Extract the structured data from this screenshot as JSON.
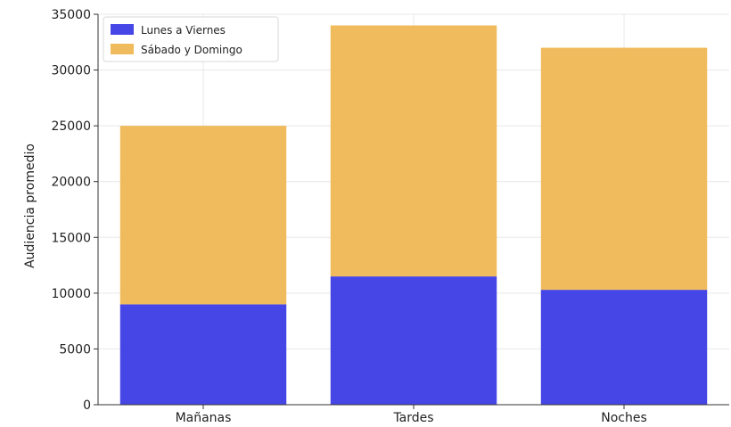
{
  "chart_data": {
    "type": "bar",
    "stacked": true,
    "categories": [
      "Mañanas",
      "Tardes",
      "Noches"
    ],
    "series": [
      {
        "name": "Lunes a Viernes",
        "values": [
          9000,
          11500,
          10300
        ],
        "color": "#4646e6"
      },
      {
        "name": "Sábado y Domingo",
        "values": [
          16000,
          22500,
          21700
        ],
        "color": "#f0bb5c"
      }
    ],
    "title": "",
    "xlabel": "",
    "ylabel": "Audiencia promedio",
    "ylim": [
      0,
      35000
    ],
    "yticks": [
      "0",
      "5000",
      "10000",
      "15000",
      "20000",
      "25000",
      "30000",
      "35000"
    ],
    "grid": true,
    "legend_position": "top-left"
  }
}
